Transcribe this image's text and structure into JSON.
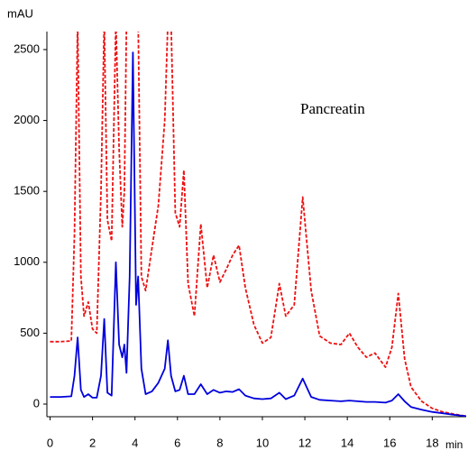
{
  "chart_data": {
    "type": "line",
    "y_label": "mAU",
    "x_label": "min",
    "annotation": "Pancreatin",
    "x": [
      0,
      0.5,
      1.0,
      1.15,
      1.3,
      1.45,
      1.6,
      1.8,
      2.0,
      2.2,
      2.4,
      2.55,
      2.7,
      2.9,
      3.1,
      3.25,
      3.4,
      3.5,
      3.6,
      3.75,
      3.9,
      4.05,
      4.15,
      4.3,
      4.5,
      4.8,
      5.1,
      5.4,
      5.55,
      5.7,
      5.9,
      6.1,
      6.3,
      6.5,
      6.8,
      7.1,
      7.4,
      7.7,
      8.0,
      8.3,
      8.6,
      8.9,
      9.2,
      9.6,
      10.0,
      10.4,
      10.8,
      11.1,
      11.5,
      11.9,
      12.3,
      12.7,
      13.2,
      13.7,
      14.1,
      14.5,
      14.9,
      15.3,
      15.8,
      16.1,
      16.4,
      16.7,
      17.0,
      17.5,
      18.0,
      18.5,
      19.0,
      19.6
    ],
    "series": [
      {
        "color": "#0000dd",
        "dash": false,
        "values": [
          50,
          50,
          55,
          200,
          470,
          100,
          50,
          70,
          45,
          45,
          200,
          600,
          80,
          60,
          1000,
          420,
          330,
          420,
          220,
          900,
          2480,
          700,
          900,
          250,
          70,
          90,
          150,
          250,
          450,
          200,
          90,
          100,
          200,
          70,
          70,
          140,
          70,
          100,
          80,
          90,
          85,
          105,
          60,
          40,
          35,
          40,
          80,
          35,
          60,
          180,
          50,
          30,
          25,
          20,
          25,
          20,
          15,
          15,
          10,
          25,
          70,
          20,
          -20,
          -40,
          -55,
          -65,
          -75,
          -85
        ]
      },
      {
        "color": "#ee1111",
        "dash": true,
        "values": [
          440,
          440,
          445,
          1200,
          2700,
          900,
          620,
          720,
          530,
          500,
          1500,
          2700,
          1300,
          1150,
          2700,
          1800,
          1250,
          1500,
          2700,
          2700,
          2700,
          2700,
          2700,
          900,
          800,
          1100,
          1400,
          2000,
          2700,
          2700,
          1350,
          1250,
          1650,
          850,
          620,
          1270,
          820,
          1050,
          860,
          950,
          1050,
          1120,
          820,
          560,
          430,
          470,
          850,
          620,
          700,
          1460,
          800,
          480,
          430,
          420,
          500,
          400,
          330,
          360,
          260,
          400,
          780,
          320,
          120,
          20,
          -30,
          -55,
          -70,
          -85
        ]
      }
    ],
    "xlim": [
      -0.15,
      19.6
    ],
    "ylim": [
      -89,
      2627
    ],
    "xticks": [
      0,
      2,
      4,
      6,
      8,
      10,
      12,
      14,
      16,
      18
    ],
    "yticks": [
      0,
      500,
      1000,
      1500,
      2000,
      2500
    ]
  }
}
